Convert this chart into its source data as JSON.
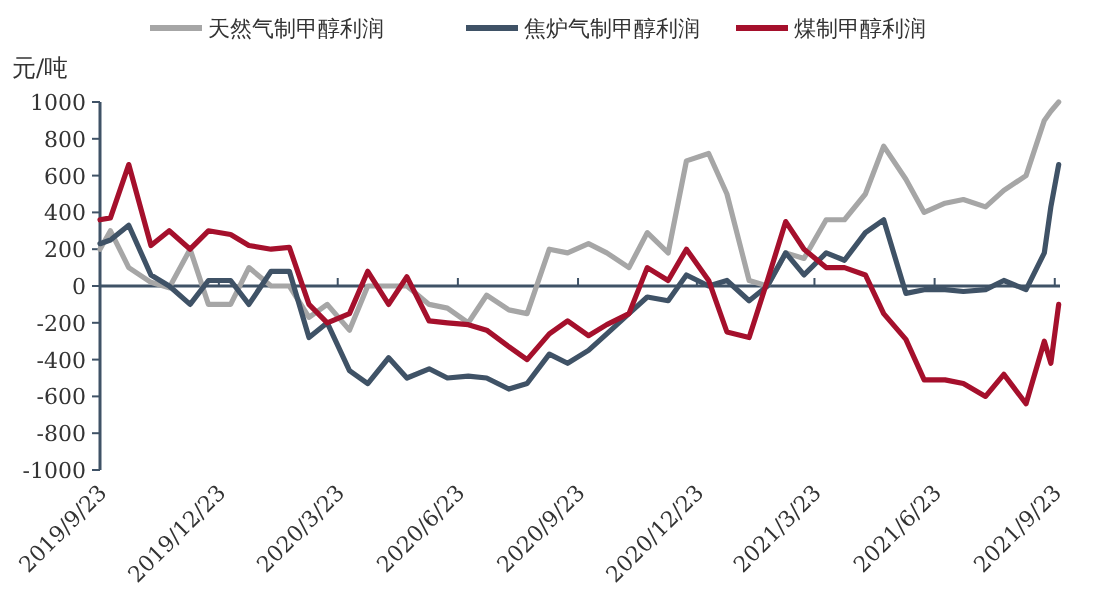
{
  "chart_data": {
    "type": "line",
    "ylabel": "元/吨",
    "legend": "top",
    "line_style": "solid",
    "marker": "none",
    "xlim": [
      "2019-09-23",
      "2021-09-27"
    ],
    "ylim": [
      -1000,
      1000
    ],
    "yticks": [
      -1000,
      -800,
      -600,
      -400,
      -200,
      0,
      200,
      400,
      600,
      800,
      1000
    ],
    "xticks": [
      {
        "value": "2019-09-23",
        "label": "2019/9/23"
      },
      {
        "value": "2019-12-23",
        "label": "2019/12/23"
      },
      {
        "value": "2020-03-23",
        "label": "2020/3/23"
      },
      {
        "value": "2020-06-23",
        "label": "2020/6/23"
      },
      {
        "value": "2020-09-23",
        "label": "2020/9/23"
      },
      {
        "value": "2020-12-23",
        "label": "2020/12/23"
      },
      {
        "value": "2021-03-23",
        "label": "2021/3/23"
      },
      {
        "value": "2021-06-23",
        "label": "2021/6/23"
      },
      {
        "value": "2021-09-23",
        "label": "2021/9/23"
      }
    ],
    "x": [
      "2019-09-23",
      "2019-10-01",
      "2019-10-15",
      "2019-11-01",
      "2019-11-15",
      "2019-12-01",
      "2019-12-15",
      "2020-01-01",
      "2020-01-15",
      "2020-02-01",
      "2020-02-15",
      "2020-03-01",
      "2020-03-15",
      "2020-04-01",
      "2020-04-15",
      "2020-05-01",
      "2020-05-15",
      "2020-06-01",
      "2020-06-15",
      "2020-07-01",
      "2020-07-15",
      "2020-08-01",
      "2020-08-15",
      "2020-09-01",
      "2020-09-15",
      "2020-10-01",
      "2020-10-15",
      "2020-11-01",
      "2020-11-15",
      "2020-12-01",
      "2020-12-15",
      "2021-01-01",
      "2021-01-15",
      "2021-02-01",
      "2021-02-15",
      "2021-03-01",
      "2021-03-15",
      "2021-04-01",
      "2021-04-15",
      "2021-05-01",
      "2021-05-15",
      "2021-06-01",
      "2021-06-15",
      "2021-07-01",
      "2021-07-15",
      "2021-08-01",
      "2021-08-15",
      "2021-09-01",
      "2021-09-15",
      "2021-09-20",
      "2021-09-26"
    ],
    "series": [
      {
        "name": "天然气制甲醇利润",
        "color": "#a6a6a6",
        "values": [
          200,
          300,
          100,
          20,
          -10,
          200,
          -100,
          -100,
          100,
          0,
          0,
          -170,
          -100,
          -240,
          0,
          0,
          0,
          -100,
          -120,
          -200,
          -50,
          -130,
          -150,
          200,
          180,
          230,
          180,
          100,
          290,
          180,
          680,
          720,
          500,
          30,
          0,
          180,
          150,
          360,
          360,
          500,
          760,
          580,
          400,
          450,
          470,
          430,
          520,
          600,
          900,
          950,
          1000
        ]
      },
      {
        "name": "焦炉气制甲醇利润",
        "color": "#3f5266",
        "values": [
          230,
          250,
          330,
          60,
          0,
          -100,
          30,
          30,
          -100,
          80,
          80,
          -280,
          -200,
          -460,
          -530,
          -390,
          -500,
          -450,
          -500,
          -490,
          -500,
          -560,
          -530,
          -370,
          -420,
          -350,
          -260,
          -150,
          -60,
          -80,
          60,
          0,
          30,
          -80,
          0,
          180,
          60,
          180,
          140,
          290,
          360,
          -40,
          -20,
          -20,
          -30,
          -20,
          30,
          -20,
          180,
          430,
          660
        ]
      },
      {
        "name": "煤制甲醇利润",
        "color": "#a5102c",
        "values": [
          360,
          370,
          660,
          220,
          300,
          200,
          300,
          280,
          220,
          200,
          210,
          -100,
          -200,
          -150,
          80,
          -100,
          50,
          -190,
          -200,
          -210,
          -240,
          -330,
          -400,
          -260,
          -190,
          -270,
          -210,
          -150,
          100,
          30,
          200,
          30,
          -250,
          -280,
          30,
          350,
          200,
          100,
          100,
          60,
          -150,
          -290,
          -510,
          -510,
          -530,
          -600,
          -480,
          -640,
          -300,
          -420,
          -100
        ]
      }
    ]
  }
}
